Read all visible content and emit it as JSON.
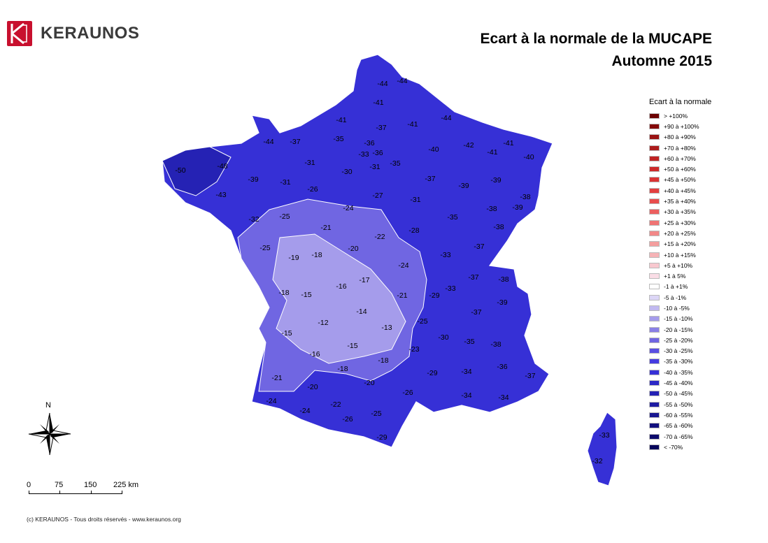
{
  "brand": {
    "name": "KERAUNOS",
    "logo_color": "#c8102e"
  },
  "title": {
    "line1": "Ecart à la normale de la MUCAPE",
    "line2": "Automne 2015"
  },
  "legend": {
    "title": "Ecart à la normale",
    "items": [
      {
        "label": "> +100%",
        "color": "#6b0000"
      },
      {
        "label": "+90 à +100%",
        "color": "#840a0a"
      },
      {
        "label": "+80 à +90%",
        "color": "#9a1414"
      },
      {
        "label": "+70 à +80%",
        "color": "#ac1c1c"
      },
      {
        "label": "+60 à +70%",
        "color": "#bf2323"
      },
      {
        "label": "+50 à +60%",
        "color": "#cc2a2a"
      },
      {
        "label": "+45 à +50%",
        "color": "#d93333"
      },
      {
        "label": "+40 à +45%",
        "color": "#e23f3f"
      },
      {
        "label": "+35 à +40%",
        "color": "#e84d4d"
      },
      {
        "label": "+30 à +35%",
        "color": "#ec5f5f"
      },
      {
        "label": "+25 à +30%",
        "color": "#ef7373"
      },
      {
        "label": "+20 à +25%",
        "color": "#f28888"
      },
      {
        "label": "+15 à +20%",
        "color": "#f49e9e"
      },
      {
        "label": "+10 à +15%",
        "color": "#f6b3b6"
      },
      {
        "label": "+5 à +10%",
        "color": "#f8c8cf"
      },
      {
        "label": "+1 à 5%",
        "color": "#fadde6"
      },
      {
        "label": "-1 à +1%",
        "color": "#ffffff"
      },
      {
        "label": "-5 à -1%",
        "color": "#dcd6f6"
      },
      {
        "label": "-10 à -5%",
        "color": "#c1b9f0"
      },
      {
        "label": "-15 à -10%",
        "color": "#a59ceb"
      },
      {
        "label": "-20 à -15%",
        "color": "#8a80e6"
      },
      {
        "label": "-25 à -20%",
        "color": "#7066e2"
      },
      {
        "label": "-30 à -25%",
        "color": "#5a50e2"
      },
      {
        "label": "-35 à -30%",
        "color": "#453ce0"
      },
      {
        "label": "-40 à -35%",
        "color": "#3630d6"
      },
      {
        "label": "-45 à -40%",
        "color": "#2c28c6"
      },
      {
        "label": "-50 à -45%",
        "color": "#2522b4"
      },
      {
        "label": "-55 à -50%",
        "color": "#1e1ca2"
      },
      {
        "label": "-60 à -55%",
        "color": "#181690"
      },
      {
        "label": "-65 à -60%",
        "color": "#12107e"
      },
      {
        "label": "-70 à -65%",
        "color": "#0c0a6c"
      },
      {
        "label": "< -70%",
        "color": "#07055a"
      }
    ]
  },
  "map": {
    "region": "France métropolitaine",
    "fill_scale": {
      "west_low": "#2c28c6",
      "center_light": "#a59ceb",
      "east": "#3630d6"
    },
    "department_values": [
      {
        "value": "-44"
      },
      {
        "value": "-44"
      },
      {
        "value": "-41"
      },
      {
        "value": "-41"
      },
      {
        "value": "-37"
      },
      {
        "value": "-41"
      },
      {
        "value": "-44"
      },
      {
        "value": "-44"
      },
      {
        "value": "-37"
      },
      {
        "value": "-35"
      },
      {
        "value": "-36"
      },
      {
        "value": "-33"
      },
      {
        "value": "-36"
      },
      {
        "value": "-50"
      },
      {
        "value": "-48"
      },
      {
        "value": "-31"
      },
      {
        "value": "-30"
      },
      {
        "value": "-31"
      },
      {
        "value": "-35"
      },
      {
        "value": "-40"
      },
      {
        "value": "-42"
      },
      {
        "value": "-41"
      },
      {
        "value": "-41"
      },
      {
        "value": "-40"
      },
      {
        "value": "-39"
      },
      {
        "value": "-31"
      },
      {
        "value": "-26"
      },
      {
        "value": "-43"
      },
      {
        "value": "-27"
      },
      {
        "value": "-37"
      },
      {
        "value": "-39"
      },
      {
        "value": "-39"
      },
      {
        "value": "-31"
      },
      {
        "value": "-24"
      },
      {
        "value": "-38"
      },
      {
        "value": "-39"
      },
      {
        "value": "-32"
      },
      {
        "value": "-25"
      },
      {
        "value": "-21"
      },
      {
        "value": "-28"
      },
      {
        "value": "-35"
      },
      {
        "value": "-38"
      },
      {
        "value": "-38"
      },
      {
        "value": "-22"
      },
      {
        "value": "-25"
      },
      {
        "value": "-20"
      },
      {
        "value": "-37"
      },
      {
        "value": "-19"
      },
      {
        "value": "-18"
      },
      {
        "value": "-33"
      },
      {
        "value": "-24"
      },
      {
        "value": "-17"
      },
      {
        "value": "-37"
      },
      {
        "value": "-38"
      },
      {
        "value": "-16"
      },
      {
        "value": "-18"
      },
      {
        "value": "-15"
      },
      {
        "value": "-21"
      },
      {
        "value": "-33"
      },
      {
        "value": "-29"
      },
      {
        "value": "-39"
      },
      {
        "value": "-14"
      },
      {
        "value": "-37"
      },
      {
        "value": "-12"
      },
      {
        "value": "-13"
      },
      {
        "value": "-25"
      },
      {
        "value": "-15"
      },
      {
        "value": "-30"
      },
      {
        "value": "-35"
      },
      {
        "value": "-38"
      },
      {
        "value": "-15"
      },
      {
        "value": "-23"
      },
      {
        "value": "-16"
      },
      {
        "value": "-18"
      },
      {
        "value": "-36"
      },
      {
        "value": "-18"
      },
      {
        "value": "-21"
      },
      {
        "value": "-29"
      },
      {
        "value": "-34"
      },
      {
        "value": "-37"
      },
      {
        "value": "-20"
      },
      {
        "value": "-20"
      },
      {
        "value": "-26"
      },
      {
        "value": "-24"
      },
      {
        "value": "-34"
      },
      {
        "value": "-34"
      },
      {
        "value": "-22"
      },
      {
        "value": "-24"
      },
      {
        "value": "-26"
      },
      {
        "value": "-25"
      },
      {
        "value": "-29"
      },
      {
        "value": "-33"
      },
      {
        "value": "-32"
      }
    ]
  },
  "compass": {
    "label": "N"
  },
  "scale_bar": {
    "ticks": [
      "0",
      "75",
      "150",
      "225 km"
    ]
  },
  "footer": {
    "text": "(c) KERAUNOS - Tous droits réservés - www.keraunos.org"
  }
}
